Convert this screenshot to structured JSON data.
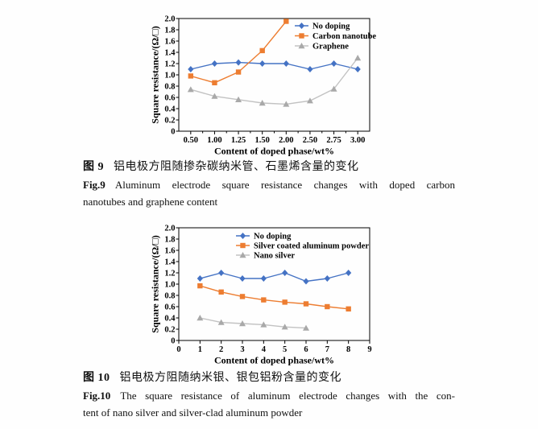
{
  "page": {
    "background": "#ffffff"
  },
  "figures": [
    {
      "caption_zh_label": "图 9",
      "caption_zh_text": "铝电极方阻随掺杂碳纳米管、石墨烯含量的变化",
      "caption_en_label": "Fig.9",
      "caption_en_line1": "Aluminum electrode square resistance changes with doped carbon",
      "caption_en_line2": "nanotubes and graphene content"
    },
    {
      "caption_zh_label": "图 10",
      "caption_zh_text": "铝电极方阻随纳米银、银包铝粉含量的变化",
      "caption_en_label": "Fig.10",
      "caption_en_line1": "The square resistance of aluminum electrode changes with the con-",
      "caption_en_line2": "tent of nano silver and silver-clad aluminum powder"
    }
  ],
  "chart_data": [
    {
      "type": "line",
      "x_mode": "categorical",
      "categories": [
        "0.50",
        "1.00",
        "1.25",
        "1.50",
        "2.00",
        "2.50",
        "2.75",
        "3.00"
      ],
      "xlabel": "Content of doped phase/wt%",
      "ylabel": "Square resistance/(Ω/□)",
      "ylim": [
        0,
        2.0
      ],
      "ytick_step": 0.2,
      "grid": false,
      "legend_position": "inside-top-right",
      "series": [
        {
          "name": "No doping",
          "color": "#4472C4",
          "line_color": "#4472C4",
          "marker": "diamond",
          "values": [
            1.1,
            1.2,
            1.22,
            1.2,
            1.2,
            1.1,
            1.2,
            1.1
          ]
        },
        {
          "name": "Carbon nanotube",
          "color": "#ED7D31",
          "line_color": "#ED7D31",
          "marker": "square",
          "values": [
            0.98,
            0.86,
            1.05,
            1.43,
            1.95,
            null,
            null,
            null
          ]
        },
        {
          "name": "Graphene",
          "color": "#A9A9A9",
          "line_color": "#C2C2C2",
          "marker": "triangle",
          "values": [
            0.74,
            0.62,
            0.56,
            0.5,
            0.48,
            0.54,
            0.75,
            1.3
          ]
        }
      ]
    },
    {
      "type": "line",
      "x_mode": "linear",
      "x": [
        1,
        2,
        3,
        4,
        5,
        6,
        7,
        8
      ],
      "xlim": [
        0,
        9
      ],
      "xticks": [
        0,
        1,
        2,
        3,
        4,
        5,
        6,
        7,
        8,
        9
      ],
      "xlabel": "Content of doped phase/wt%",
      "ylabel": "Square resistance/(Ω/□)",
      "ylim": [
        0,
        2.0
      ],
      "ytick_step": 0.2,
      "grid": false,
      "legend_position": "inside-top",
      "series": [
        {
          "name": "No doping",
          "color": "#4472C4",
          "line_color": "#4472C4",
          "marker": "diamond",
          "values": [
            1.1,
            1.2,
            1.1,
            1.1,
            1.2,
            1.05,
            1.1,
            1.2
          ]
        },
        {
          "name": "Silver coated aluminum powder",
          "color": "#ED7D31",
          "line_color": "#ED7D31",
          "marker": "square",
          "values": [
            0.97,
            0.86,
            0.78,
            0.72,
            0.68,
            0.65,
            0.6,
            0.56
          ]
        },
        {
          "name": "Nano silver",
          "color": "#A9A9A9",
          "line_color": "#C2C2C2",
          "marker": "triangle",
          "values": [
            0.4,
            0.32,
            0.3,
            0.28,
            0.24,
            0.22,
            null,
            null
          ]
        }
      ]
    }
  ]
}
